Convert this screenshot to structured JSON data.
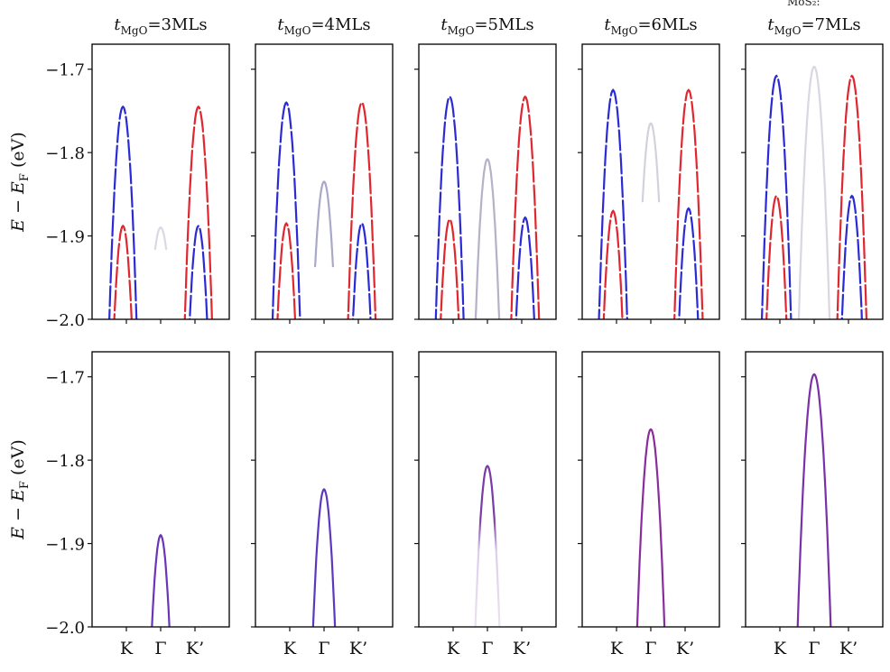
{
  "figure": {
    "top_note": "MoS₂:"
  },
  "chart_data": {
    "type": "line",
    "ylabel": {
      "main": "E − E",
      "sub": "F",
      "unit": " (eV)"
    },
    "ylim": [
      -2.0,
      -1.67
    ],
    "yticks": [
      -1.7,
      -1.8,
      -1.9,
      -2.0
    ],
    "ytick_labels": [
      "−1.7",
      "−1.8",
      "−1.9",
      "−2.0"
    ],
    "xlim": [
      -1.0,
      1.0
    ],
    "xticks": [
      -0.5,
      0.0,
      0.5
    ],
    "xtick_labels": [
      "K",
      "Γ",
      "K’"
    ],
    "grid": false,
    "panels": [
      {
        "row": 0,
        "col": 0,
        "title": {
          "base": "t",
          "sub": "MgO",
          "rest": "=3MLs"
        },
        "bands": [
          {
            "shape": "parabola",
            "center": -0.55,
            "peak": -1.745,
            "curvature": 6.5,
            "color": "#2a2ad6"
          },
          {
            "shape": "parabola",
            "center": 0.55,
            "peak": -1.745,
            "curvature": 6.5,
            "color": "#e0262f"
          },
          {
            "shape": "parabola",
            "center": -0.55,
            "peak": -1.888,
            "curvature": 7.0,
            "color": "#e0262f"
          },
          {
            "shape": "parabola",
            "center": 0.55,
            "peak": -1.888,
            "curvature": 7.0,
            "color": "#2a2ad6"
          },
          {
            "shape": "parabola",
            "center": 0.0,
            "peak": -1.89,
            "curvature": 4.0,
            "color": "#d9d9e3",
            "range": [
              -0.08,
              0.08
            ]
          }
        ]
      },
      {
        "row": 0,
        "col": 1,
        "title": {
          "base": "t",
          "sub": "MgO",
          "rest": "=4MLs"
        },
        "bands": [
          {
            "shape": "parabola",
            "center": -0.55,
            "peak": -1.74,
            "curvature": 6.5,
            "color": "#2a2ad6"
          },
          {
            "shape": "parabola",
            "center": 0.55,
            "peak": -1.74,
            "curvature": 6.5,
            "color": "#e0262f"
          },
          {
            "shape": "parabola",
            "center": -0.55,
            "peak": -1.885,
            "curvature": 7.0,
            "color": "#e0262f"
          },
          {
            "shape": "parabola",
            "center": 0.55,
            "peak": -1.885,
            "curvature": 7.0,
            "color": "#2a2ad6"
          },
          {
            "shape": "parabola",
            "center": 0.0,
            "peak": -1.835,
            "curvature": 6.0,
            "color": "#a8a8c8",
            "range": [
              -0.13,
              0.13
            ]
          }
        ]
      },
      {
        "row": 0,
        "col": 2,
        "title": {
          "base": "t",
          "sub": "MgO",
          "rest": "=5MLs"
        },
        "bands": [
          {
            "shape": "parabola",
            "center": -0.55,
            "peak": -1.733,
            "curvature": 6.5,
            "color": "#2a2ad6"
          },
          {
            "shape": "parabola",
            "center": 0.55,
            "peak": -1.733,
            "curvature": 6.5,
            "color": "#e0262f"
          },
          {
            "shape": "parabola",
            "center": -0.55,
            "peak": -1.88,
            "curvature": 7.0,
            "color": "#e0262f"
          },
          {
            "shape": "parabola",
            "center": 0.55,
            "peak": -1.878,
            "curvature": 7.0,
            "color": "#2a2ad6"
          },
          {
            "shape": "parabola",
            "center": 0.0,
            "peak": -1.808,
            "curvature": 6.5,
            "color": "#b6b0c8",
            "range": [
              -0.22,
              0.22
            ]
          }
        ]
      },
      {
        "row": 0,
        "col": 3,
        "title": {
          "base": "t",
          "sub": "MgO",
          "rest": "=6MLs"
        },
        "bands": [
          {
            "shape": "parabola",
            "center": -0.55,
            "peak": -1.725,
            "curvature": 6.5,
            "color": "#2a2ad6"
          },
          {
            "shape": "parabola",
            "center": 0.55,
            "peak": -1.725,
            "curvature": 6.5,
            "color": "#e0262f"
          },
          {
            "shape": "parabola",
            "center": -0.55,
            "peak": -1.87,
            "curvature": 7.0,
            "color": "#e0262f"
          },
          {
            "shape": "parabola",
            "center": 0.55,
            "peak": -1.867,
            "curvature": 7.0,
            "color": "#2a2ad6"
          },
          {
            "shape": "parabola",
            "center": 0.0,
            "peak": -1.765,
            "curvature": 6.5,
            "color": "#d2d2dc",
            "range": [
              -0.12,
              0.12
            ]
          }
        ]
      },
      {
        "row": 0,
        "col": 4,
        "title": {
          "base": "t",
          "sub": "MgO",
          "rest": "=7MLs"
        },
        "bands": [
          {
            "shape": "parabola",
            "center": -0.55,
            "peak": -1.708,
            "curvature": 6.5,
            "color": "#2a2ad6"
          },
          {
            "shape": "parabola",
            "center": 0.55,
            "peak": -1.708,
            "curvature": 6.5,
            "color": "#e0262f"
          },
          {
            "shape": "parabola",
            "center": -0.55,
            "peak": -1.852,
            "curvature": 7.0,
            "color": "#e0262f"
          },
          {
            "shape": "parabola",
            "center": 0.55,
            "peak": -1.852,
            "curvature": 7.0,
            "color": "#2a2ad6"
          },
          {
            "shape": "parabola",
            "center": 0.0,
            "peak": -1.697,
            "curvature": 6.0,
            "color": "#dad6e2",
            "range": [
              -0.3,
              0.3
            ]
          }
        ]
      },
      {
        "row": 1,
        "col": 0,
        "title": null,
        "bands": [
          {
            "shape": "parabola",
            "center": 0.0,
            "peak": -1.89,
            "curvature": 6.8,
            "color": "#6a35b8"
          }
        ]
      },
      {
        "row": 1,
        "col": 1,
        "title": null,
        "bands": [
          {
            "shape": "parabola",
            "center": 0.0,
            "peak": -1.835,
            "curvature": 6.5,
            "color": "#5c37c0"
          }
        ]
      },
      {
        "row": 1,
        "col": 2,
        "title": null,
        "bands": [
          {
            "shape": "parabola",
            "center": 0.0,
            "peak": -1.807,
            "curvature": 6.2,
            "color": "#7a3aa8",
            "fade_below": -1.87
          }
        ]
      },
      {
        "row": 1,
        "col": 3,
        "title": null,
        "bands": [
          {
            "shape": "parabola",
            "center": 0.0,
            "peak": -1.763,
            "curvature": 6.0,
            "color": "#8a2c9e"
          }
        ]
      },
      {
        "row": 1,
        "col": 4,
        "title": null,
        "bands": [
          {
            "shape": "parabola",
            "center": 0.0,
            "peak": -1.697,
            "curvature": 5.2,
            "color": "#7a30a8"
          }
        ]
      }
    ]
  }
}
